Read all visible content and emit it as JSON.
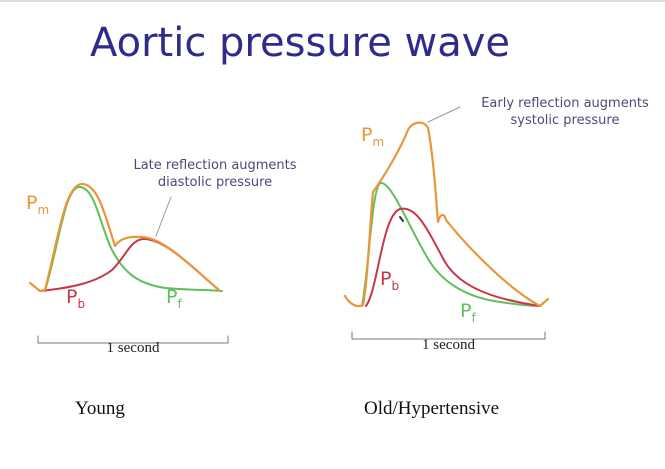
{
  "title": "Aortic pressure wave",
  "colors": {
    "title": "#2d2b8c",
    "pm": "#e8963a",
    "pb": "#c8364a",
    "pf": "#5fbf5a"
  },
  "young": {
    "caption": "Young",
    "note_line1": "Late reflection augments",
    "note_line2": "diastolic pressure",
    "scale": "1 second",
    "labels": {
      "pm": "P",
      "pm_sub": "m",
      "pb": "P",
      "pb_sub": "b",
      "pf": "P",
      "pf_sub": "f"
    }
  },
  "old": {
    "caption": "Old/Hypertensive",
    "note_line1": "Early reflection augments",
    "note_line2": "systolic pressure",
    "scale": "1 second",
    "labels": {
      "pm": "P",
      "pm_sub": "m",
      "pb": "P",
      "pb_sub": "b",
      "pf": "P",
      "pf_sub": "f"
    }
  }
}
